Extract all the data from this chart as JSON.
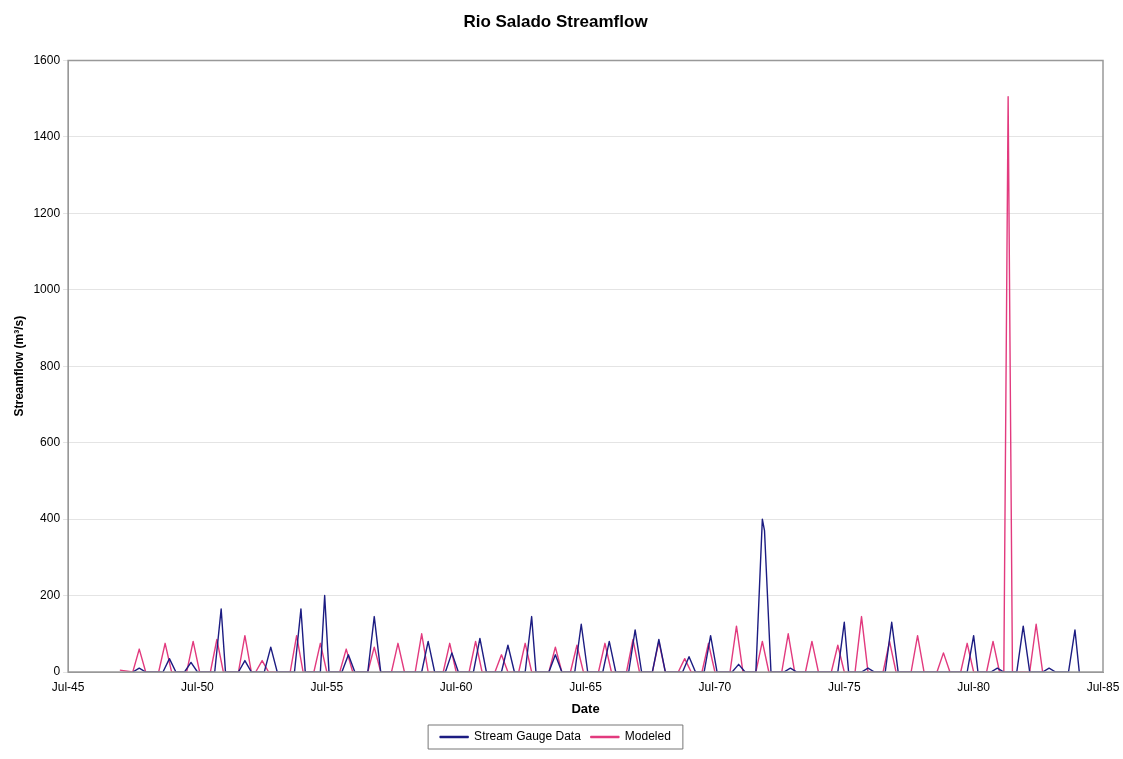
{
  "chart_data": {
    "type": "line",
    "title": "Rio Salado Streamflow",
    "xlabel": "Date",
    "ylabel": "Streamflow (m³/s)",
    "xlim": [
      "1945-07",
      "1985-07"
    ],
    "xticks": [
      {
        "value": "1945-07",
        "label": "Jul-45"
      },
      {
        "value": "1950-07",
        "label": "Jul-50"
      },
      {
        "value": "1955-07",
        "label": "Jul-55"
      },
      {
        "value": "1960-07",
        "label": "Jul-60"
      },
      {
        "value": "1965-07",
        "label": "Jul-65"
      },
      {
        "value": "1970-07",
        "label": "Jul-70"
      },
      {
        "value": "1975-07",
        "label": "Jul-75"
      },
      {
        "value": "1980-07",
        "label": "Jul-80"
      },
      {
        "value": "1985-07",
        "label": "Jul-85"
      }
    ],
    "ylim": [
      0,
      1600
    ],
    "yticks": [
      0,
      200,
      400,
      600,
      800,
      1000,
      1200,
      1400,
      1600
    ],
    "grid": "y",
    "legend": "bottom",
    "marker": "none",
    "line_style": "solid",
    "series": [
      {
        "name": "Stream Gauge Data",
        "color": "#1c1c82",
        "x": [
          "1948-01",
          "1948-04",
          "1948-07",
          "1949-03",
          "1949-06",
          "1949-09",
          "1950-01",
          "1950-04",
          "1950-07",
          "1951-03",
          "1951-06",
          "1951-08",
          "1952-02",
          "1952-05",
          "1952-08",
          "1953-02",
          "1953-05",
          "1953-08",
          "1954-04",
          "1954-07",
          "1954-09",
          "1955-04",
          "1955-06",
          "1955-08",
          "1956-02",
          "1956-05",
          "1956-08",
          "1957-02",
          "1957-05",
          "1957-08",
          "1959-03",
          "1959-06",
          "1959-09",
          "1960-02",
          "1960-05",
          "1960-08",
          "1961-03",
          "1961-06",
          "1961-09",
          "1962-04",
          "1962-07",
          "1962-10",
          "1963-03",
          "1963-06",
          "1963-08",
          "1964-02",
          "1964-05",
          "1964-08",
          "1965-02",
          "1965-05",
          "1965-08",
          "1966-03",
          "1966-06",
          "1966-09",
          "1967-03",
          "1967-06",
          "1967-09",
          "1968-02",
          "1968-05",
          "1968-08",
          "1969-04",
          "1969-07",
          "1969-10",
          "1970-02",
          "1970-05",
          "1970-08",
          "1971-03",
          "1971-06",
          "1971-09",
          "1972-02",
          "1972-05",
          "1972-06",
          "1972-09",
          "1973-03",
          "1973-06",
          "1973-09",
          "1975-04",
          "1975-07",
          "1975-09",
          "1976-03",
          "1976-06",
          "1976-09",
          "1977-02",
          "1977-05",
          "1977-08",
          "1980-04",
          "1980-07",
          "1980-09",
          "1981-03",
          "1981-06",
          "1981-09",
          "1982-03",
          "1982-06",
          "1982-09",
          "1983-03",
          "1983-06",
          "1983-09",
          "1984-03",
          "1984-06",
          "1984-08"
        ],
        "values": [
          0,
          10,
          0,
          0,
          35,
          0,
          0,
          25,
          0,
          0,
          165,
          0,
          0,
          30,
          0,
          0,
          65,
          0,
          0,
          165,
          0,
          0,
          200,
          0,
          0,
          45,
          0,
          0,
          145,
          0,
          0,
          80,
          0,
          0,
          50,
          0,
          0,
          88,
          0,
          0,
          70,
          0,
          0,
          145,
          0,
          0,
          45,
          0,
          0,
          125,
          0,
          0,
          80,
          0,
          0,
          110,
          0,
          0,
          85,
          0,
          0,
          40,
          0,
          0,
          95,
          0,
          0,
          20,
          0,
          0,
          400,
          370,
          0,
          0,
          10,
          0,
          0,
          130,
          0,
          0,
          10,
          0,
          0,
          130,
          0,
          0,
          95,
          0,
          0,
          10,
          0,
          0,
          120,
          0,
          0,
          10,
          0,
          0,
          110,
          0
        ]
      },
      {
        "name": "Modeled",
        "color": "#e23a7e",
        "x": [
          "1947-07",
          "1948-01",
          "1948-04",
          "1948-07",
          "1949-01",
          "1949-04",
          "1949-07",
          "1950-02",
          "1950-05",
          "1950-08",
          "1951-01",
          "1951-04",
          "1951-07",
          "1952-02",
          "1952-05",
          "1952-08",
          "1952-10",
          "1953-01",
          "1953-04",
          "1954-02",
          "1954-05",
          "1954-08",
          "1955-01",
          "1955-04",
          "1955-07",
          "1956-01",
          "1956-04",
          "1956-07",
          "1957-02",
          "1957-05",
          "1957-08",
          "1958-01",
          "1958-04",
          "1958-07",
          "1958-12",
          "1959-03",
          "1959-06",
          "1960-01",
          "1960-04",
          "1960-07",
          "1961-01",
          "1961-04",
          "1961-07",
          "1962-01",
          "1962-04",
          "1962-07",
          "1962-12",
          "1963-03",
          "1963-06",
          "1964-02",
          "1964-05",
          "1964-08",
          "1964-12",
          "1965-03",
          "1965-06",
          "1966-01",
          "1966-04",
          "1966-07",
          "1967-02",
          "1967-05",
          "1967-08",
          "1968-02",
          "1968-05",
          "1968-08",
          "1969-02",
          "1969-05",
          "1969-08",
          "1970-01",
          "1970-04",
          "1970-07",
          "1971-02",
          "1971-05",
          "1971-08",
          "1972-02",
          "1972-05",
          "1972-08",
          "1973-02",
          "1973-05",
          "1973-08",
          "1974-01",
          "1974-04",
          "1974-07",
          "1975-01",
          "1975-04",
          "1975-07",
          "1975-12",
          "1976-03",
          "1976-06",
          "1977-01",
          "1977-04",
          "1977-07",
          "1978-02",
          "1978-05",
          "1978-08",
          "1979-02",
          "1979-05",
          "1979-08",
          "1980-01",
          "1980-04",
          "1980-07",
          "1981-01",
          "1981-04",
          "1981-07",
          "1981-09",
          "1981-11",
          "1982-01",
          "1982-09",
          "1982-12",
          "1983-03"
        ],
        "values": [
          5,
          0,
          60,
          0,
          0,
          75,
          0,
          0,
          80,
          0,
          0,
          85,
          0,
          0,
          95,
          0,
          0,
          30,
          0,
          0,
          95,
          0,
          0,
          75,
          0,
          0,
          60,
          0,
          0,
          65,
          0,
          0,
          75,
          0,
          0,
          100,
          0,
          0,
          75,
          0,
          0,
          80,
          0,
          0,
          45,
          0,
          0,
          75,
          0,
          0,
          65,
          0,
          0,
          70,
          0,
          0,
          75,
          0,
          0,
          85,
          0,
          0,
          80,
          0,
          0,
          35,
          0,
          0,
          75,
          0,
          0,
          120,
          0,
          0,
          80,
          0,
          0,
          100,
          0,
          0,
          80,
          0,
          0,
          70,
          0,
          0,
          145,
          0,
          0,
          80,
          0,
          0,
          95,
          0,
          0,
          50,
          0,
          0,
          75,
          0,
          0,
          80,
          0,
          0,
          1505,
          0,
          0,
          125,
          0
        ]
      }
    ]
  }
}
